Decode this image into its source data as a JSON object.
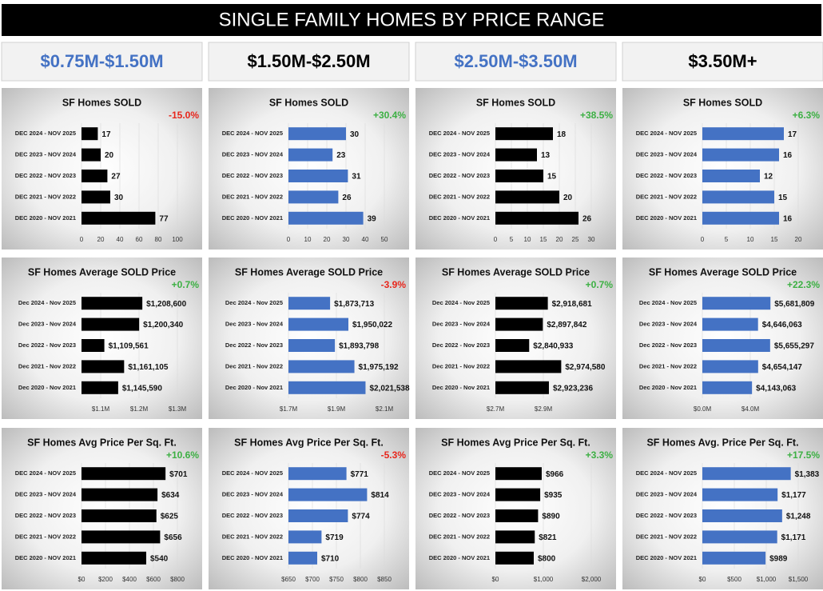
{
  "header": {
    "title": "SINGLE FAMILY HOMES BY PRICE RANGE",
    "columns": [
      {
        "label": "$0.75M-$1.50M",
        "color": "#4472c4"
      },
      {
        "label": "$1.50M-$2.50M",
        "color": "#000000"
      },
      {
        "label": "$2.50M-$3.50M",
        "color": "#4472c4"
      },
      {
        "label": "$3.50M+",
        "color": "#000000"
      }
    ]
  },
  "chart_data": [
    {
      "type": "barh",
      "title": "SF Homes SOLD",
      "change": "-15.0%",
      "change_color": "#e8261c",
      "color": "#000000",
      "categories": [
        "DEC 2024 - NOV 2025",
        "DEC 2023 - NOV 2024",
        "DEC 2022 - NOV 2023",
        "DEC 2021 - NOV 2022",
        "DEC 2020 - NOV 2021"
      ],
      "values": [
        17,
        20,
        27,
        30,
        77
      ],
      "xlim": [
        0,
        100
      ],
      "xticks": [
        0,
        20,
        40,
        60,
        80,
        100
      ]
    },
    {
      "type": "barh",
      "title": "SF Homes SOLD",
      "change": "+30.4%",
      "change_color": "#3cb043",
      "color": "#4472c4",
      "categories": [
        "DEC 2024 - NOV 2025",
        "DEC 2023 - NOV 2024",
        "DEC 2022 - NOV 2023",
        "DEC 2021 - NOV 2022",
        "DEC 2020 - NOV 2021"
      ],
      "values": [
        30,
        23,
        31,
        26,
        39
      ],
      "xlim": [
        0,
        50
      ],
      "xticks": [
        0,
        10,
        20,
        30,
        40,
        50
      ]
    },
    {
      "type": "barh",
      "title": "SF Homes SOLD",
      "change": "+38.5%",
      "change_color": "#3cb043",
      "color": "#000000",
      "categories": [
        "DEC 2024 - NOV 2025",
        "DEC 2023 - NOV 2024",
        "DEC 2022 - NOV 2023",
        "DEC 2021 - NOV 2022",
        "DEC 2020 - NOV 2021"
      ],
      "values": [
        18,
        13,
        15,
        20,
        26
      ],
      "xlim": [
        0,
        30
      ],
      "xticks": [
        0,
        5,
        10,
        15,
        20,
        25,
        30
      ]
    },
    {
      "type": "barh",
      "title": "SF Homes SOLD",
      "change": "+6.3%",
      "change_color": "#3cb043",
      "color": "#4472c4",
      "categories": [
        "DEC 2024 - NOV 2025",
        "DEC 2023 - NOV 2024",
        "DEC 2022 - NOV 2023",
        "DEC 2021 - NOV 2022",
        "DEC 2020 - NOV 2021"
      ],
      "values": [
        17,
        16,
        12,
        15,
        16
      ],
      "xlim": [
        0,
        20
      ],
      "xticks": [
        0,
        5,
        10,
        15,
        20
      ]
    },
    {
      "type": "barh",
      "title": "SF Homes Average SOLD Price",
      "change": "+0.7%",
      "change_color": "#3cb043",
      "color": "#000000",
      "categories": [
        "Dec 2024 - Nov 2025",
        "Dec 2023 - Nov 2024",
        "Dec 2022 - Nov 2023",
        "Dec 2021 - Nov 2022",
        "Dec 2020 - Nov 2021"
      ],
      "values": [
        1208600,
        1200340,
        1109561,
        1161105,
        1145590
      ],
      "value_labels": [
        "$1,208,600",
        "$1,200,340",
        "$1,109,561",
        "$1,161,105",
        "$1,145,590"
      ],
      "xlim": [
        1050000,
        1300000
      ],
      "xticks": [
        {
          "value": 1100000,
          "label": "$1.1M"
        },
        {
          "value": 1200000,
          "label": "$1.2M"
        },
        {
          "value": 1300000,
          "label": "$1.3M"
        }
      ]
    },
    {
      "type": "barh",
      "title": "SF Homes Average SOLD Price",
      "change": "-3.9%",
      "change_color": "#e8261c",
      "color": "#4472c4",
      "categories": [
        "Dec 2024 - Nov 2025",
        "Dec 2023 - Nov 2024",
        "Dec 2022 - Nov 2023",
        "Dec 2021 - Nov 2022",
        "Dec 2020 - Nov 2021"
      ],
      "values": [
        1873713,
        1950022,
        1893798,
        1975192,
        2021538
      ],
      "value_labels": [
        "$1,873,713",
        "$1,950,022",
        "$1,893,798",
        "$1,975,192",
        "$2,021,538"
      ],
      "xlim": [
        1700000,
        2100000
      ],
      "xticks": [
        {
          "value": 1700000,
          "label": "$1.7M"
        },
        {
          "value": 1900000,
          "label": "$1.9M"
        },
        {
          "value": 2100000,
          "label": "$2.1M"
        }
      ]
    },
    {
      "type": "barh",
      "title": "SF Homes Average SOLD Price",
      "change": "+0.7%",
      "change_color": "#3cb043",
      "color": "#000000",
      "categories": [
        "Dec 2024 - Nov 2025",
        "Dec 2023 - Nov 2024",
        "Dec 2022 - Nov 2023",
        "Dec 2021 - Nov 2022",
        "Dec 2020 - Nov 2021"
      ],
      "values": [
        2918681,
        2897842,
        2840933,
        2974580,
        2923236
      ],
      "value_labels": [
        "$2,918,681",
        "$2,897,842",
        "$2,840,933",
        "$2,974,580",
        "$2,923,236"
      ],
      "xlim": [
        2700000,
        3100000
      ],
      "xticks": [
        {
          "value": 2700000,
          "label": "$2.7M"
        },
        {
          "value": 2900000,
          "label": "$2.9M"
        }
      ]
    },
    {
      "type": "barh",
      "title": "SF Homes Average SOLD Price",
      "change": "+22.3%",
      "change_color": "#3cb043",
      "color": "#4472c4",
      "categories": [
        "Dec 2024 - Nov 2025",
        "Dec 2023 - Nov 2024",
        "Dec 2022 - Nov 2023",
        "Dec 2021 - Nov 2022",
        "Dec 2020 - Nov 2021"
      ],
      "values": [
        5681809,
        4646063,
        5655297,
        4654147,
        4143063
      ],
      "value_labels": [
        "$5,681,809",
        "$4,646,063",
        "$5,655,297",
        "$4,654,147",
        "$4,143,063"
      ],
      "xlim": [
        0,
        8000000
      ],
      "xticks": [
        {
          "value": 0,
          "label": "$0.0M"
        },
        {
          "value": 4000000,
          "label": "$4.0M"
        }
      ]
    },
    {
      "type": "barh",
      "title": "SF Homes Avg Price Per Sq. Ft.",
      "change": "+10.6%",
      "change_color": "#3cb043",
      "color": "#000000",
      "categories": [
        "DEC 2024 - NOV 2025",
        "DEC 2023 - NOV 2024",
        "DEC 2022 - NOV 2023",
        "DEC 2021 - NOV 2022",
        "DEC 2020 - NOV 2021"
      ],
      "values": [
        701,
        634,
        625,
        656,
        540
      ],
      "value_labels": [
        "$701",
        "$634",
        "$625",
        "$656",
        "$540"
      ],
      "xlim": [
        0,
        800
      ],
      "xticks": [
        {
          "value": 0,
          "label": "$0"
        },
        {
          "value": 200,
          "label": "$200"
        },
        {
          "value": 400,
          "label": "$400"
        },
        {
          "value": 600,
          "label": "$600"
        },
        {
          "value": 800,
          "label": "$800"
        }
      ]
    },
    {
      "type": "barh",
      "title": "SF Homes Avg Price Per Sq. Ft.",
      "change": "-5.3%",
      "change_color": "#e8261c",
      "color": "#4472c4",
      "categories": [
        "DEC 2024 - NOV 2025",
        "DEC 2023 - NOV 2024",
        "DEC 2022 - NOV 2023",
        "DEC 2021 - NOV 2022",
        "DEC 2020 - NOV 2021"
      ],
      "values": [
        771,
        814,
        774,
        719,
        710
      ],
      "value_labels": [
        "$771",
        "$814",
        "$774",
        "$719",
        "$710"
      ],
      "xlim": [
        650,
        850
      ],
      "xticks": [
        {
          "value": 650,
          "label": "$650"
        },
        {
          "value": 700,
          "label": "$700"
        },
        {
          "value": 750,
          "label": "$750"
        },
        {
          "value": 800,
          "label": "$800"
        },
        {
          "value": 850,
          "label": "$850"
        }
      ]
    },
    {
      "type": "barh",
      "title": "SF Homes Avg Price Per Sq. Ft.",
      "change": "+3.3%",
      "change_color": "#3cb043",
      "color": "#000000",
      "categories": [
        "DEC 2024 - NOV 2025",
        "DEC 2023 - NOV 2024",
        "DEC 2022 - NOV 2023",
        "DEC 2021 - NOV 2022",
        "DEC 2020 - NOV 2021"
      ],
      "values": [
        966,
        935,
        890,
        821,
        800
      ],
      "value_labels": [
        "$966",
        "$935",
        "$890",
        "$821",
        "$800"
      ],
      "xlim": [
        0,
        2000
      ],
      "xticks": [
        {
          "value": 0,
          "label": "$0"
        },
        {
          "value": 1000,
          "label": "$1,000"
        },
        {
          "value": 2000,
          "label": "$2,000"
        }
      ]
    },
    {
      "type": "barh",
      "title": "SF Homes Avg. Price Per Sq. Ft.",
      "change": "+17.5%",
      "change_color": "#3cb043",
      "color": "#4472c4",
      "categories": [
        "DEC 2024 - NOV 2025",
        "DEC 2023 - NOV 2024",
        "DEC 2022 - NOV 2023",
        "DEC 2021 - NOV 2022",
        "DEC 2020 - NOV 2021"
      ],
      "values": [
        1383,
        1177,
        1248,
        1171,
        989
      ],
      "value_labels": [
        "$1,383",
        "$1,177",
        "$1,248",
        "$1,171",
        "$989"
      ],
      "xlim": [
        0,
        1500
      ],
      "xticks": [
        {
          "value": 0,
          "label": "$0"
        },
        {
          "value": 500,
          "label": "$500"
        },
        {
          "value": 1000,
          "label": "$1,000"
        },
        {
          "value": 1500,
          "label": "$1,500"
        }
      ]
    }
  ]
}
